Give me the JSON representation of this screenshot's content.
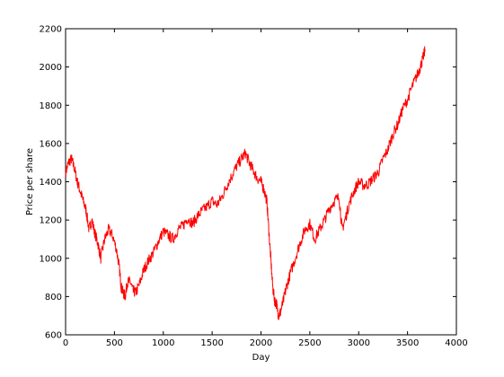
{
  "chart_data": {
    "type": "line",
    "title": "",
    "xlabel": "Day",
    "ylabel": "Price per share",
    "xlim": [
      0,
      4000
    ],
    "ylim": [
      600,
      2200
    ],
    "xticks": [
      0,
      500,
      1000,
      1500,
      2000,
      2500,
      3000,
      3500,
      4000
    ],
    "yticks": [
      600,
      800,
      1000,
      1200,
      1400,
      1600,
      1800,
      2000,
      2200
    ],
    "grid": false,
    "series": [
      {
        "color": "#ff0000",
        "x": [
          0,
          30,
          60,
          90,
          120,
          150,
          180,
          210,
          240,
          270,
          300,
          330,
          360,
          400,
          440,
          480,
          520,
          550,
          570,
          590,
          610,
          630,
          660,
          690,
          720,
          760,
          800,
          850,
          900,
          950,
          1000,
          1050,
          1100,
          1150,
          1200,
          1250,
          1300,
          1350,
          1400,
          1450,
          1500,
          1550,
          1600,
          1650,
          1700,
          1750,
          1800,
          1840,
          1880,
          1920,
          1960,
          2000,
          2030,
          2060,
          2080,
          2100,
          2120,
          2140,
          2160,
          2180,
          2200,
          2230,
          2260,
          2300,
          2350,
          2400,
          2450,
          2500,
          2550,
          2600,
          2650,
          2700,
          2750,
          2800,
          2830,
          2860,
          2900,
          2950,
          3000,
          3050,
          3100,
          3150,
          3200,
          3250,
          3300,
          3350,
          3400,
          3450,
          3500,
          3550,
          3600,
          3630,
          3660,
          3680
        ],
        "values": [
          1450,
          1500,
          1520,
          1470,
          1400,
          1350,
          1300,
          1250,
          1150,
          1200,
          1130,
          1080,
          1000,
          1100,
          1150,
          1120,
          1050,
          950,
          850,
          820,
          800,
          870,
          880,
          830,
          820,
          870,
          940,
          990,
          1030,
          1090,
          1140,
          1120,
          1100,
          1150,
          1170,
          1210,
          1180,
          1220,
          1250,
          1270,
          1300,
          1280,
          1320,
          1380,
          1430,
          1480,
          1520,
          1550,
          1500,
          1460,
          1420,
          1400,
          1360,
          1300,
          1150,
          1000,
          850,
          780,
          760,
          700,
          720,
          780,
          850,
          920,
          1000,
          1080,
          1150,
          1180,
          1100,
          1150,
          1200,
          1260,
          1300,
          1320,
          1150,
          1200,
          1280,
          1350,
          1400,
          1380,
          1390,
          1420,
          1450,
          1520,
          1570,
          1650,
          1700,
          1780,
          1830,
          1900,
          1960,
          2000,
          2050,
          2090
        ]
      }
    ]
  }
}
